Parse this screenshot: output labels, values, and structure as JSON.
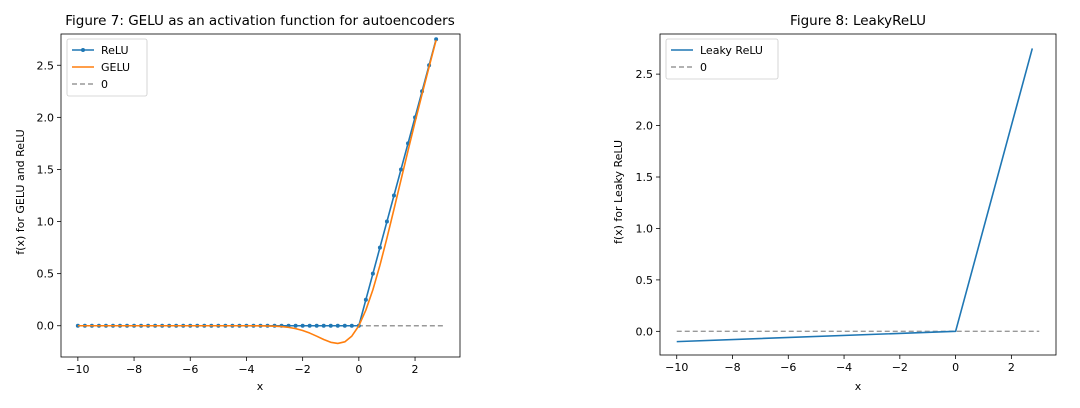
{
  "chart_data": [
    {
      "type": "line",
      "title": "Figure 7: GELU as an activation function for autoencoders",
      "xlabel": "x",
      "ylabel": "f(x) for GELU and ReLU",
      "xlim": [
        -10.6,
        3.6
      ],
      "ylim": [
        -0.3,
        2.8
      ],
      "xticks": [
        -10,
        -8,
        -6,
        -4,
        -2,
        0,
        2
      ],
      "xtick_labels": [
        "−10",
        "−8",
        "−6",
        "−4",
        "−2",
        "0",
        "2"
      ],
      "yticks": [
        0,
        0.5,
        1,
        1.5,
        2,
        2.5
      ],
      "ytick_labels": [
        "0.0",
        "0.5",
        "1.0",
        "1.5",
        "2.0",
        "2.5"
      ],
      "grid": false,
      "legend_position": "top-left",
      "series": [
        {
          "name": "ReLU",
          "color": "#1f77b4",
          "marker": "dot",
          "x": [
            -10,
            -9.75,
            -9.5,
            -9.25,
            -9,
            -8.75,
            -8.5,
            -8.25,
            -8,
            -7.75,
            -7.5,
            -7.25,
            -7,
            -6.75,
            -6.5,
            -6.25,
            -6,
            -5.75,
            -5.5,
            -5.25,
            -5,
            -4.75,
            -4.5,
            -4.25,
            -4,
            -3.75,
            -3.5,
            -3.25,
            -3,
            -2.75,
            -2.5,
            -2.25,
            -2,
            -1.75,
            -1.5,
            -1.25,
            -1,
            -0.75,
            -0.5,
            -0.25,
            0,
            0.25,
            0.5,
            0.75,
            1,
            1.25,
            1.5,
            1.75,
            2,
            2.25,
            2.5,
            2.75
          ],
          "y": [
            0,
            0,
            0,
            0,
            0,
            0,
            0,
            0,
            0,
            0,
            0,
            0,
            0,
            0,
            0,
            0,
            0,
            0,
            0,
            0,
            0,
            0,
            0,
            0,
            0,
            0,
            0,
            0,
            0,
            0,
            0,
            0,
            0,
            0,
            0,
            0,
            0,
            0,
            0,
            0,
            0,
            0.25,
            0.5,
            0.75,
            1,
            1.25,
            1.5,
            1.75,
            2,
            2.25,
            2.5,
            2.75
          ]
        },
        {
          "name": "GELU",
          "color": "#ff7f0e",
          "marker": "none",
          "x": [
            -10,
            -8,
            -6,
            -4,
            -3.5,
            -3,
            -2.75,
            -2.5,
            -2.25,
            -2,
            -1.75,
            -1.5,
            -1.25,
            -1,
            -0.75,
            -0.5,
            -0.25,
            0,
            0.25,
            0.5,
            0.75,
            1,
            1.25,
            1.5,
            1.75,
            2,
            2.25,
            2.5,
            2.75
          ],
          "y": [
            0,
            0,
            0,
            -0.0001,
            -0.0008,
            -0.004,
            -0.008,
            -0.0155,
            -0.0275,
            -0.0455,
            -0.0702,
            -0.1002,
            -0.132,
            -0.1587,
            -0.1699,
            -0.1543,
            -0.0995,
            0,
            0.1505,
            0.3457,
            0.5801,
            0.8413,
            1.118,
            1.3998,
            1.6798,
            1.9545,
            2.2225,
            2.4845,
            2.742
          ]
        },
        {
          "name": "0",
          "color": "#808080",
          "style": "dashed",
          "x": [
            -10,
            3
          ],
          "y": [
            0,
            0
          ]
        }
      ]
    },
    {
      "type": "line",
      "title": "Figure 8: LeakyReLU",
      "xlabel": "x",
      "ylabel": "f(x) for Leaky ReLU",
      "xlim": [
        -10.6,
        3.6
      ],
      "ylim": [
        -0.23,
        2.89
      ],
      "xticks": [
        -10,
        -8,
        -6,
        -4,
        -2,
        0,
        2
      ],
      "xtick_labels": [
        "−10",
        "−8",
        "−6",
        "−4",
        "−2",
        "0",
        "2"
      ],
      "yticks": [
        0,
        0.5,
        1,
        1.5,
        2,
        2.5
      ],
      "ytick_labels": [
        "0.0",
        "0.5",
        "1.0",
        "1.5",
        "2.0",
        "2.5"
      ],
      "grid": false,
      "legend_position": "top-left",
      "series": [
        {
          "name": "Leaky ReLU",
          "color": "#1f77b4",
          "marker": "none",
          "x": [
            -10,
            0,
            2.75
          ],
          "y": [
            -0.1,
            0,
            2.75
          ]
        },
        {
          "name": "0",
          "color": "#808080",
          "style": "dashed",
          "x": [
            -10,
            3
          ],
          "y": [
            0,
            0
          ]
        }
      ]
    }
  ]
}
